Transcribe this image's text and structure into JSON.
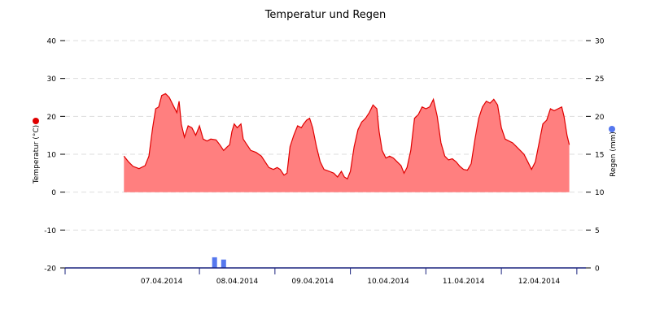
{
  "chart_data": {
    "type": "area",
    "title": "Temperatur und Regen",
    "x_tick_labels": [
      "07.04.2014",
      "08.04.2014",
      "09.04.2014",
      "10.04.2014",
      "11.04.2014",
      "12.04.2014"
    ],
    "y_left": {
      "label": "Temperatur (°C)",
      "ylim": [
        -20,
        40
      ],
      "ticks": [
        "40",
        "30",
        "20",
        "10",
        "0",
        "-10",
        "-20"
      ]
    },
    "y_right": {
      "label": "Regen (mm)",
      "ylim": [
        0,
        30
      ],
      "ticks": [
        "30",
        "25",
        "20",
        "15",
        "10",
        "5",
        "0"
      ]
    },
    "grid": true,
    "colors": {
      "temperature_line": "#e00000",
      "temperature_fill": "#ff7f7f",
      "rain": "#5577ee",
      "axis": "#1a237e"
    },
    "temperature_points": [
      [
        0.0,
        9.5
      ],
      [
        0.06,
        8.0
      ],
      [
        0.12,
        6.8
      ],
      [
        0.2,
        6.2
      ],
      [
        0.28,
        7.0
      ],
      [
        0.33,
        9.5
      ],
      [
        0.38,
        17.0
      ],
      [
        0.42,
        22.0
      ],
      [
        0.46,
        22.5
      ],
      [
        0.5,
        25.5
      ],
      [
        0.55,
        26.0
      ],
      [
        0.6,
        25.0
      ],
      [
        0.65,
        23.0
      ],
      [
        0.7,
        21.0
      ],
      [
        0.73,
        24.0
      ],
      [
        0.76,
        18.0
      ],
      [
        0.8,
        14.5
      ],
      [
        0.85,
        17.5
      ],
      [
        0.9,
        17.0
      ],
      [
        0.95,
        15.0
      ],
      [
        1.0,
        17.5
      ],
      [
        1.05,
        14.0
      ],
      [
        1.1,
        13.5
      ],
      [
        1.15,
        14.0
      ],
      [
        1.22,
        13.8
      ],
      [
        1.27,
        12.5
      ],
      [
        1.32,
        11.0
      ],
      [
        1.37,
        12.0
      ],
      [
        1.4,
        12.5
      ],
      [
        1.43,
        16.0
      ],
      [
        1.46,
        18.0
      ],
      [
        1.5,
        17.0
      ],
      [
        1.55,
        18.0
      ],
      [
        1.58,
        14.0
      ],
      [
        1.63,
        12.5
      ],
      [
        1.68,
        11.0
      ],
      [
        1.75,
        10.5
      ],
      [
        1.82,
        9.5
      ],
      [
        1.87,
        8.0
      ],
      [
        1.92,
        6.5
      ],
      [
        1.98,
        6.0
      ],
      [
        2.03,
        6.5
      ],
      [
        2.07,
        6.0
      ],
      [
        2.12,
        4.5
      ],
      [
        2.16,
        5.0
      ],
      [
        2.2,
        12.0
      ],
      [
        2.25,
        15.0
      ],
      [
        2.3,
        17.5
      ],
      [
        2.35,
        17.0
      ],
      [
        2.38,
        18.0
      ],
      [
        2.42,
        19.0
      ],
      [
        2.46,
        19.5
      ],
      [
        2.5,
        17.0
      ],
      [
        2.55,
        12.0
      ],
      [
        2.6,
        8.0
      ],
      [
        2.65,
        6.0
      ],
      [
        2.72,
        5.5
      ],
      [
        2.78,
        5.0
      ],
      [
        2.83,
        4.0
      ],
      [
        2.88,
        5.5
      ],
      [
        2.92,
        4.0
      ],
      [
        2.96,
        3.5
      ],
      [
        3.0,
        5.5
      ],
      [
        3.05,
        12.0
      ],
      [
        3.1,
        16.5
      ],
      [
        3.15,
        18.5
      ],
      [
        3.2,
        19.5
      ],
      [
        3.25,
        21.0
      ],
      [
        3.3,
        23.0
      ],
      [
        3.35,
        22.0
      ],
      [
        3.38,
        16.0
      ],
      [
        3.42,
        11.0
      ],
      [
        3.47,
        9.0
      ],
      [
        3.52,
        9.5
      ],
      [
        3.57,
        9.0
      ],
      [
        3.62,
        8.0
      ],
      [
        3.67,
        7.0
      ],
      [
        3.71,
        5.0
      ],
      [
        3.75,
        6.5
      ],
      [
        3.8,
        11.0
      ],
      [
        3.85,
        19.5
      ],
      [
        3.9,
        20.5
      ],
      [
        3.95,
        22.5
      ],
      [
        4.0,
        22.0
      ],
      [
        4.05,
        22.5
      ],
      [
        4.1,
        24.5
      ],
      [
        4.15,
        20.0
      ],
      [
        4.2,
        13.0
      ],
      [
        4.25,
        9.5
      ],
      [
        4.3,
        8.5
      ],
      [
        4.35,
        8.8
      ],
      [
        4.4,
        8.0
      ],
      [
        4.45,
        6.8
      ],
      [
        4.5,
        6.0
      ],
      [
        4.55,
        5.8
      ],
      [
        4.6,
        7.5
      ],
      [
        4.65,
        14.0
      ],
      [
        4.7,
        19.5
      ],
      [
        4.75,
        22.5
      ],
      [
        4.8,
        24.0
      ],
      [
        4.85,
        23.5
      ],
      [
        4.9,
        24.5
      ],
      [
        4.95,
        23.0
      ],
      [
        5.0,
        17.0
      ],
      [
        5.05,
        14.0
      ],
      [
        5.1,
        13.5
      ],
      [
        5.15,
        13.0
      ],
      [
        5.2,
        12.0
      ],
      [
        5.25,
        11.0
      ],
      [
        5.3,
        10.0
      ],
      [
        5.35,
        8.0
      ],
      [
        5.4,
        6.0
      ],
      [
        5.45,
        8.0
      ],
      [
        5.5,
        13.0
      ],
      [
        5.55,
        18.0
      ],
      [
        5.6,
        19.0
      ],
      [
        5.65,
        22.0
      ],
      [
        5.7,
        21.5
      ],
      [
        5.75,
        22.0
      ],
      [
        5.8,
        22.5
      ],
      [
        5.83,
        20.0
      ],
      [
        5.87,
        15.0
      ],
      [
        5.9,
        12.5
      ]
    ],
    "rain_bars": [
      {
        "x": 1.2,
        "mm": 1.4
      },
      {
        "x": 1.32,
        "mm": 1.1
      }
    ],
    "x_range": [
      -0.78,
      6.12
    ]
  }
}
